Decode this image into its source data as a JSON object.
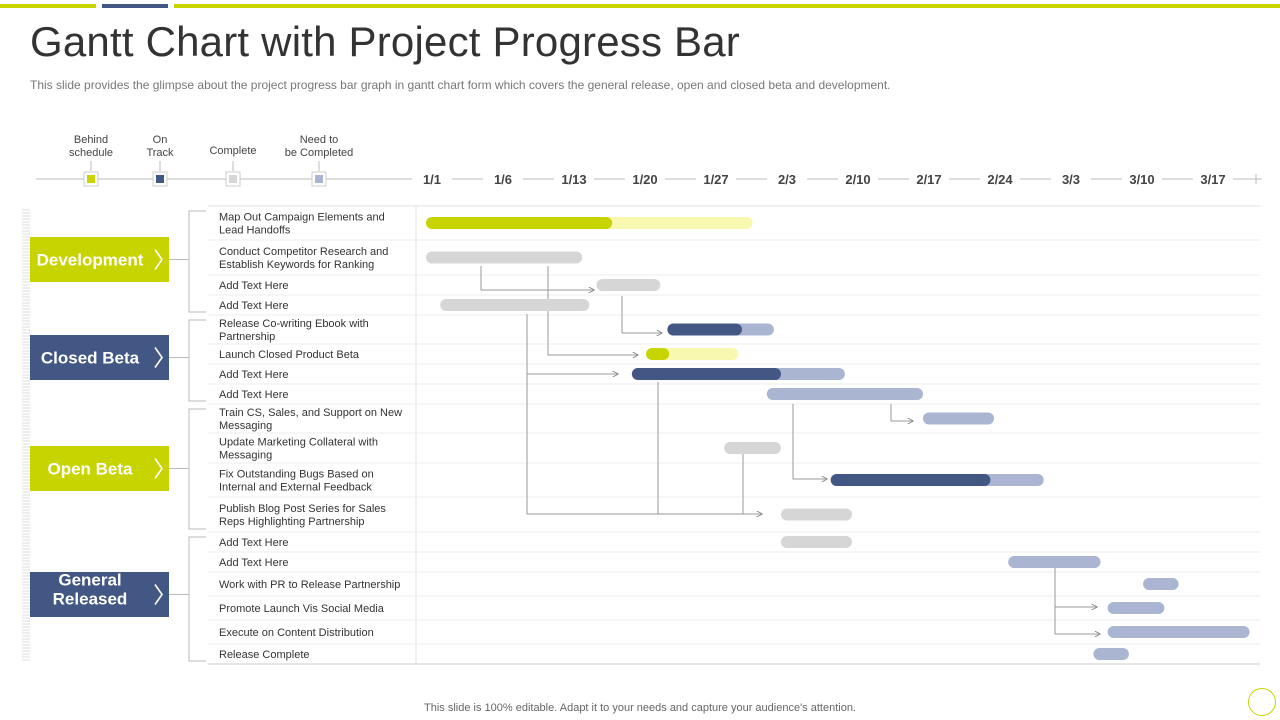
{
  "title": "Gantt Chart with Project Progress Bar",
  "subtitle": "This slide provides the glimpse about the project progress bar graph in gantt chart form which covers the general release, open and closed beta and development.",
  "footer": "This slide is 100% editable. Adapt it to your needs and capture your audience's attention.",
  "colors": {
    "lime": "#c8d400",
    "lime_light": "#f8f8b0",
    "navy": "#435785",
    "navy_light": "#aab5d1",
    "gray": "#d6d6d6"
  },
  "legend": [
    {
      "lines": [
        "Behind",
        "schedule"
      ],
      "color": "#c8d400",
      "icon": "lime-square-icon"
    },
    {
      "lines": [
        "On",
        "Track"
      ],
      "color": "#435785",
      "icon": "navy-square-icon"
    },
    {
      "lines": [
        "Complete"
      ],
      "color": "#d6d6d6",
      "icon": "gray-square-icon"
    },
    {
      "lines": [
        "Need to",
        "be Completed"
      ],
      "color": "#aab5d1",
      "icon": "light-blue-square-icon"
    }
  ],
  "chart_data": {
    "type": "gantt",
    "x_ticks": [
      "1/1",
      "1/6",
      "1/13",
      "1/20",
      "1/27",
      "2/3",
      "2/10",
      "2/17",
      "2/24",
      "3/3",
      "3/10",
      "3/17"
    ],
    "phases": [
      {
        "name": "Development",
        "color": "#c8d400"
      },
      {
        "name": "Closed Beta",
        "color": "#435785"
      },
      {
        "name": "Open Beta",
        "color": "#c8d400"
      },
      {
        "name": "General Released",
        "color": "#435785"
      }
    ],
    "tasks": [
      {
        "phase": 0,
        "label": [
          "Map Out Campaign Elements and",
          "Lead Handoffs"
        ],
        "start": 0,
        "end": 4.6,
        "progress": 0.57,
        "status": "behind"
      },
      {
        "phase": 0,
        "label": [
          "Conduct Competitor Research and",
          "Establish Keywords for Ranking"
        ],
        "start": 0,
        "end": 2.2,
        "progress": 1,
        "status": "complete"
      },
      {
        "phase": 0,
        "label": [
          "Add Text Here"
        ],
        "start": 2.4,
        "end": 3.3,
        "progress": 1,
        "status": "complete"
      },
      {
        "phase": 0,
        "label": [
          "Add Text Here"
        ],
        "start": 0.2,
        "end": 2.3,
        "progress": 1,
        "status": "complete"
      },
      {
        "phase": 1,
        "label": [
          "Release Co-writing Ebook with",
          "Partnership"
        ],
        "start": 3.4,
        "end": 4.9,
        "progress": 0.7,
        "status": "on-track"
      },
      {
        "phase": 1,
        "label": [
          "Launch Closed Product Beta"
        ],
        "start": 3.1,
        "end": 4.4,
        "progress": 0.25,
        "status": "behind"
      },
      {
        "phase": 1,
        "label": [
          "Add Text Here"
        ],
        "start": 2.9,
        "end": 5.9,
        "progress": 0.7,
        "status": "on-track"
      },
      {
        "phase": 1,
        "label": [
          "Add Text Here"
        ],
        "start": 4.8,
        "end": 7.0,
        "progress": 0,
        "status": "to-complete"
      },
      {
        "phase": 2,
        "label": [
          "Train CS, Sales, and Support on New",
          "Messaging"
        ],
        "start": 7.0,
        "end": 8.0,
        "progress": 0,
        "status": "to-complete"
      },
      {
        "phase": 2,
        "label": [
          "Update Marketing Collateral with",
          "Messaging"
        ],
        "start": 4.2,
        "end": 5.0,
        "progress": 1,
        "status": "complete"
      },
      {
        "phase": 2,
        "label": [
          "Fix Outstanding Bugs Based on",
          "Internal and External Feedback"
        ],
        "start": 5.7,
        "end": 8.7,
        "progress": 0.75,
        "status": "on-track"
      },
      {
        "phase": 2,
        "label": [
          "Publish Blog Post Series for Sales",
          "Reps Highlighting Partnership"
        ],
        "start": 5.0,
        "end": 6.0,
        "progress": 1,
        "status": "complete"
      },
      {
        "phase": 3,
        "label": [
          "Add Text Here"
        ],
        "start": 5.0,
        "end": 6.0,
        "progress": 1,
        "status": "complete"
      },
      {
        "phase": 3,
        "label": [
          "Add Text Here"
        ],
        "start": 8.2,
        "end": 9.5,
        "progress": 0,
        "status": "to-complete"
      },
      {
        "phase": 3,
        "label": [
          "Work with PR to Release Partnership"
        ],
        "start": 10.1,
        "end": 10.6,
        "progress": 0,
        "status": "to-complete"
      },
      {
        "phase": 3,
        "label": [
          "Promote Launch Vis Social Media"
        ],
        "start": 9.6,
        "end": 10.4,
        "progress": 0,
        "status": "to-complete"
      },
      {
        "phase": 3,
        "label": [
          "Execute on Content Distribution"
        ],
        "start": 9.6,
        "end": 11.6,
        "progress": 0,
        "status": "to-complete"
      },
      {
        "phase": 3,
        "label": [
          "Release Complete"
        ],
        "start": 9.4,
        "end": 9.9,
        "progress": 0,
        "status": "to-complete"
      }
    ]
  }
}
